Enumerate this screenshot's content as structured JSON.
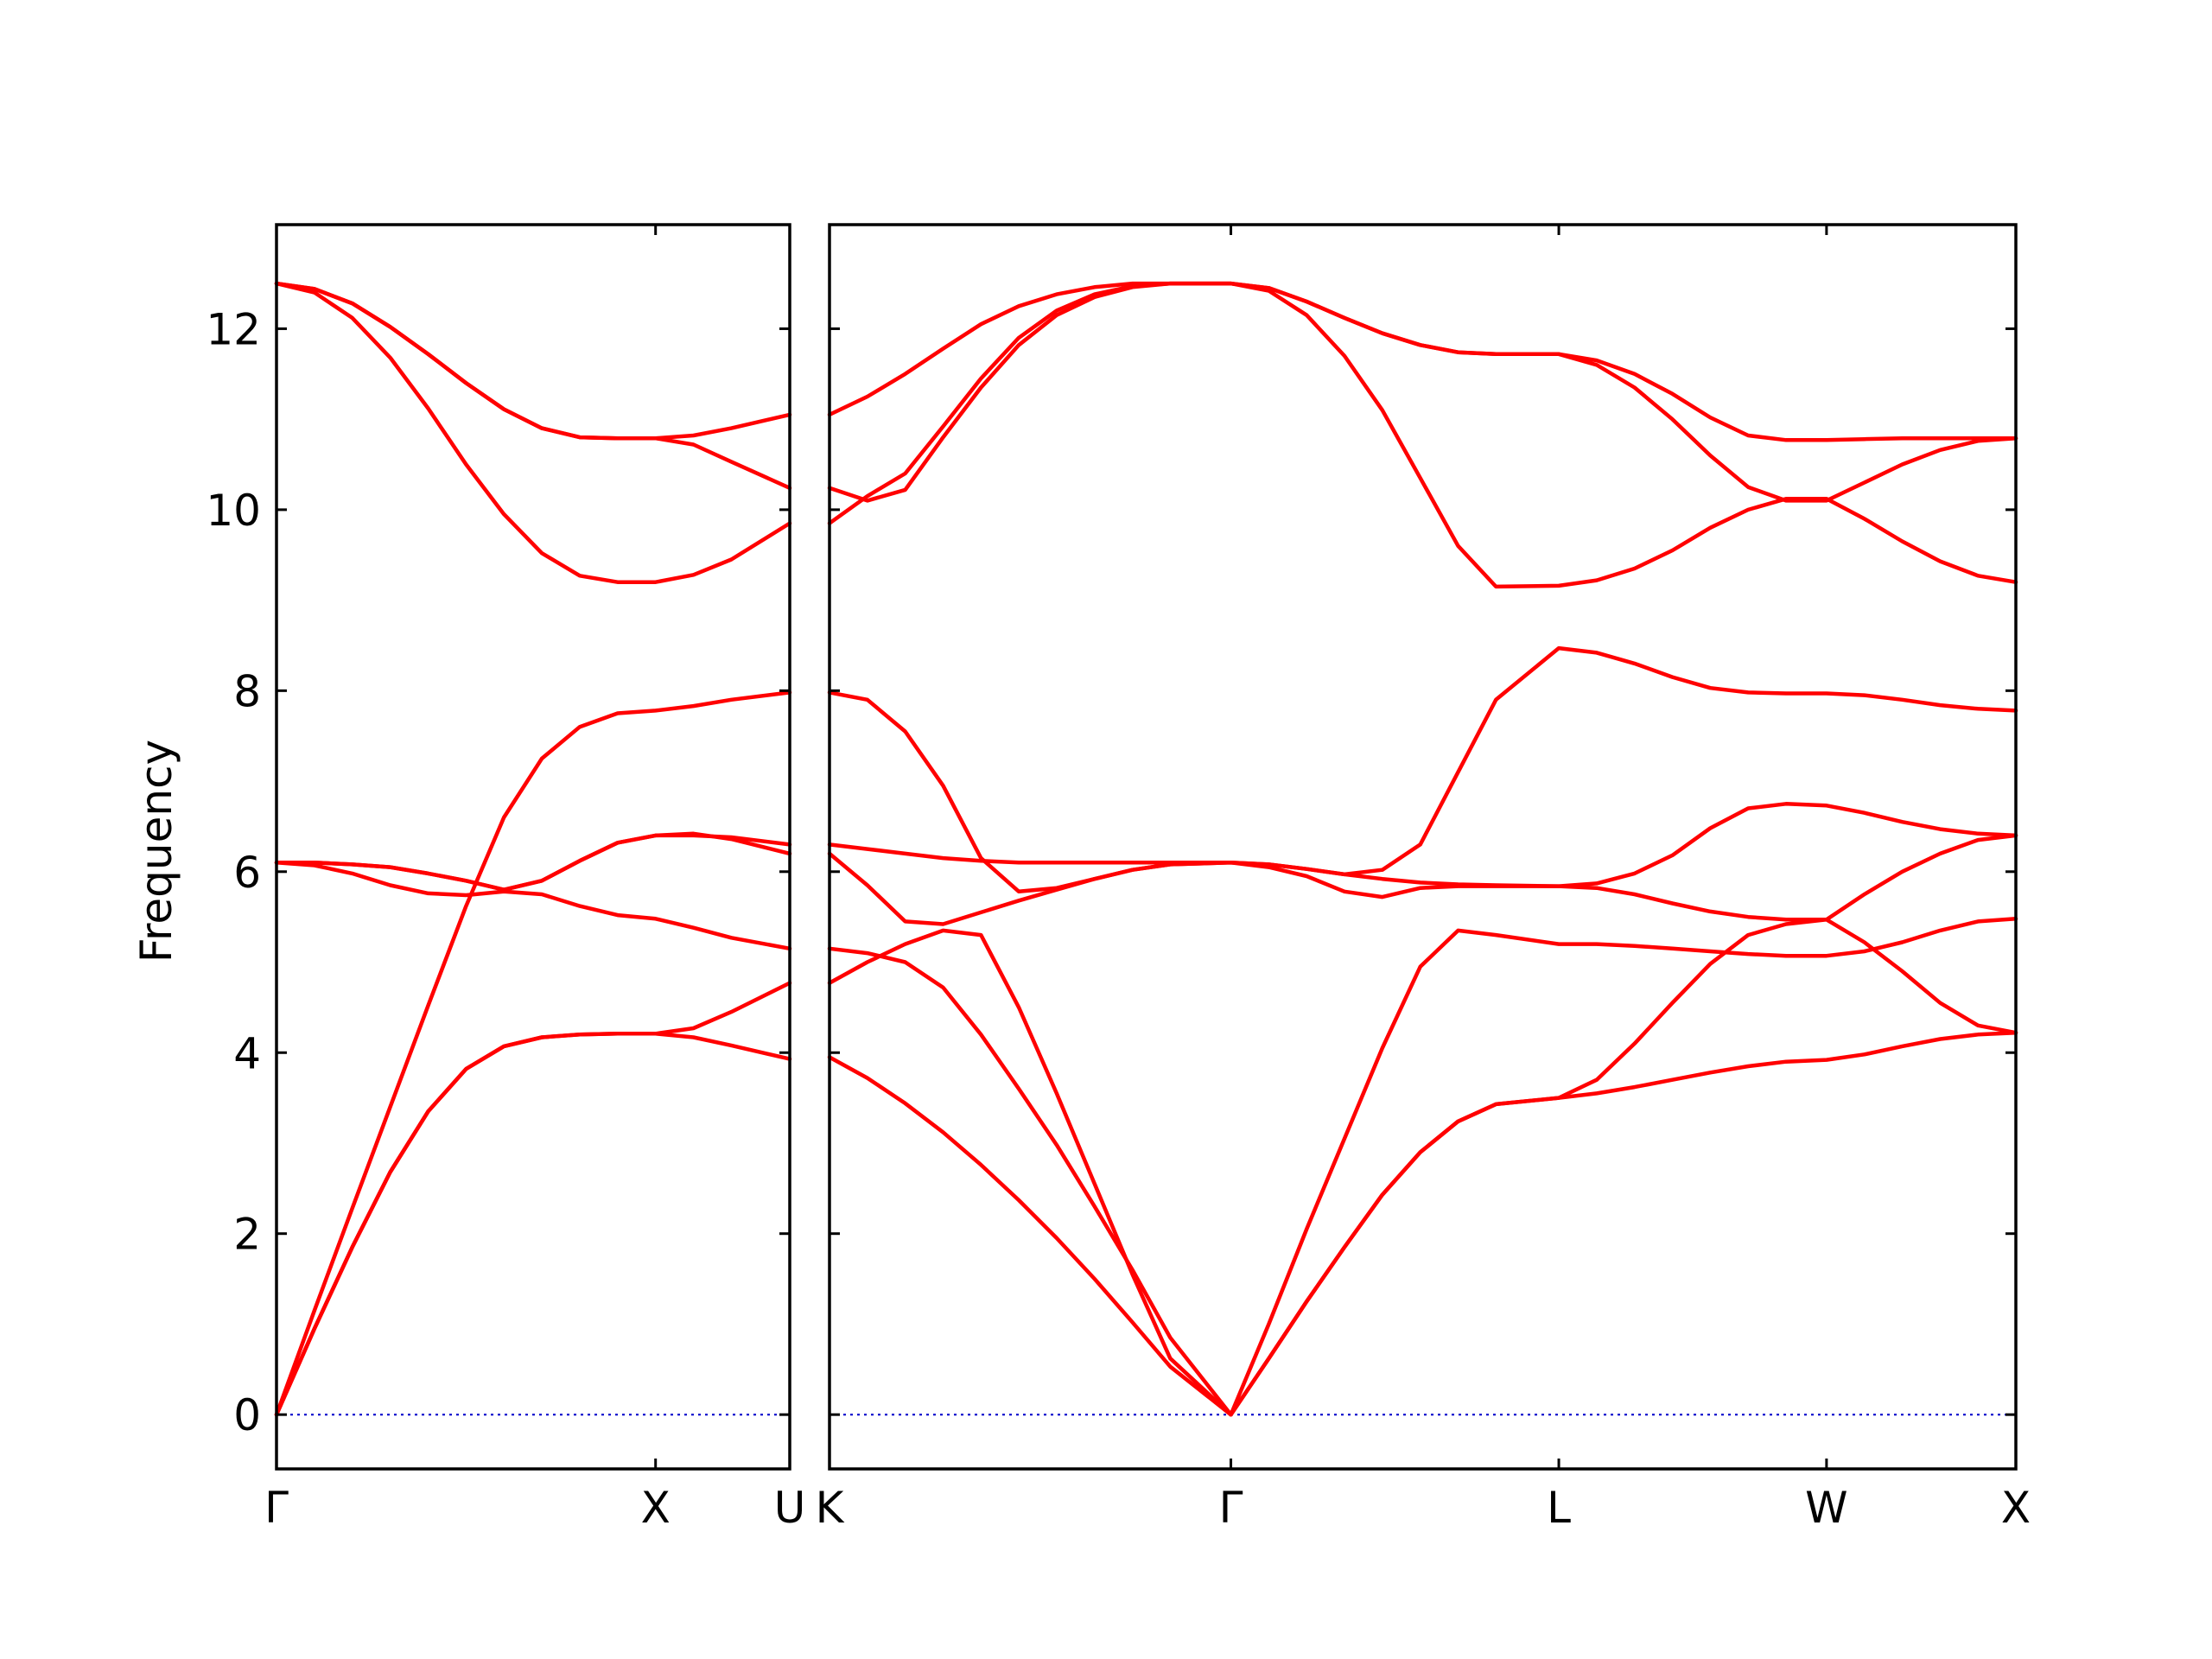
{
  "chart_data": {
    "type": "line",
    "title": "",
    "ylabel": "Frequency",
    "ylim": [
      -0.6,
      13.15
    ],
    "grid": false,
    "colors": {
      "bands": "#ff0000",
      "zero_line": "#0000cc",
      "axes": "#000000"
    },
    "y_ticks": [
      "0",
      "2",
      "4",
      "6",
      "8",
      "10",
      "12"
    ],
    "y_tick_values": [
      0,
      2,
      4,
      6,
      8,
      10,
      12
    ],
    "panels": [
      {
        "path_labels": [
          "Γ",
          "X",
          "U"
        ],
        "x_segments": [
          "Γ-X",
          "X-U"
        ],
        "segment_lengths": [
          1.0,
          0.354
        ],
        "bands": [
          {
            "x": [
              0.0,
              0.1,
              0.2,
              0.3,
              0.4,
              0.5,
              0.6,
              0.7,
              0.8,
              0.9,
              1.0,
              1.1,
              1.2,
              1.354
            ],
            "y": [
              0.0,
              0.95,
              1.85,
              2.68,
              3.35,
              3.82,
              4.07,
              4.17,
              4.2,
              4.21,
              4.21,
              4.17,
              4.08,
              3.93
            ]
          },
          {
            "x": [
              0.0,
              0.1,
              0.2,
              0.3,
              0.4,
              0.5,
              0.6,
              0.7,
              0.8,
              0.9,
              1.0,
              1.1,
              1.2,
              1.354
            ],
            "y": [
              0.0,
              1.15,
              2.28,
              3.4,
              4.52,
              5.62,
              6.6,
              7.25,
              7.6,
              7.75,
              7.78,
              7.83,
              7.9,
              7.98
            ]
          },
          {
            "x": [
              0.0,
              0.1,
              0.2,
              0.3,
              0.4,
              0.5,
              0.6,
              0.7,
              0.8,
              0.9,
              1.0,
              1.1,
              1.2,
              1.354
            ],
            "y": [
              6.1,
              6.07,
              5.98,
              5.85,
              5.76,
              5.74,
              5.78,
              5.75,
              5.62,
              5.52,
              5.48,
              5.38,
              5.27,
              5.15
            ]
          },
          {
            "x": [
              0.0,
              0.1,
              0.2,
              0.3,
              0.4,
              0.5,
              0.6,
              0.7,
              0.8,
              0.9,
              1.0,
              1.1,
              1.2,
              1.354
            ],
            "y": [
              6.1,
              6.1,
              6.08,
              6.05,
              5.98,
              5.9,
              5.8,
              5.9,
              6.12,
              6.32,
              6.4,
              6.42,
              6.36,
              6.2
            ]
          },
          {
            "x": [
              0.0,
              0.1,
              0.2,
              0.3,
              0.4,
              0.5,
              0.6,
              0.7,
              0.8,
              0.9,
              1.0,
              1.1,
              1.2,
              1.354
            ],
            "y": [
              6.1,
              6.1,
              6.08,
              6.05,
              5.98,
              5.9,
              5.8,
              5.9,
              6.12,
              6.32,
              6.4,
              6.4,
              6.38,
              6.3
            ]
          },
          {
            "x": [
              0.0,
              0.1,
              0.2,
              0.3,
              0.4,
              0.5,
              0.6,
              0.7,
              0.8,
              0.9,
              1.0,
              1.1,
              1.2,
              1.354
            ],
            "y": [
              0.0,
              0.95,
              1.85,
              2.68,
              3.35,
              3.82,
              4.07,
              4.17,
              4.2,
              4.21,
              4.21,
              4.27,
              4.45,
              4.77
            ]
          },
          {
            "x": [
              0.0,
              0.1,
              0.2,
              0.3,
              0.4,
              0.5,
              0.6,
              0.7,
              0.8,
              0.9,
              1.0,
              1.1,
              1.2,
              1.354
            ],
            "y": [
              12.5,
              12.4,
              12.12,
              11.68,
              11.12,
              10.5,
              9.95,
              9.52,
              9.27,
              9.2,
              9.2,
              9.28,
              9.45,
              9.85
            ]
          },
          {
            "x": [
              0.0,
              0.1,
              0.2,
              0.3,
              0.4,
              0.5,
              0.6,
              0.7,
              0.8,
              0.9,
              1.0,
              1.1,
              1.2,
              1.354
            ],
            "y": [
              12.5,
              12.44,
              12.28,
              12.02,
              11.72,
              11.4,
              11.11,
              10.9,
              10.8,
              10.79,
              10.79,
              10.72,
              10.53,
              10.24
            ]
          },
          {
            "x": [
              0.0,
              0.1,
              0.2,
              0.3,
              0.4,
              0.5,
              0.6,
              0.7,
              0.8,
              0.9,
              1.0,
              1.1,
              1.2,
              1.354
            ],
            "y": [
              12.5,
              12.44,
              12.28,
              12.02,
              11.72,
              11.4,
              11.11,
              10.9,
              10.8,
              10.79,
              10.79,
              10.82,
              10.9,
              11.05
            ]
          }
        ]
      },
      {
        "path_labels": [
          "K",
          "Γ",
          "L",
          "W",
          "X"
        ],
        "x_segments": [
          "K-Γ",
          "Γ-L",
          "L-W",
          "W-X"
        ],
        "segment_lengths": [
          1.06,
          0.866,
          0.707,
          0.5
        ],
        "bands": [
          {
            "x": [
              0.0,
              0.1,
              0.2,
              0.3,
              0.4,
              0.5,
              0.6,
              0.7,
              0.8,
              0.9,
              1.06,
              1.16,
              1.26,
              1.36,
              1.46,
              1.56,
              1.66,
              1.76,
              1.926,
              2.026,
              2.126,
              2.226,
              2.326,
              2.426,
              2.526,
              2.633,
              2.733,
              2.833,
              2.933,
              3.033,
              3.133
            ],
            "y": [
              3.95,
              3.72,
              3.44,
              3.12,
              2.76,
              2.37,
              1.95,
              1.5,
              1.02,
              0.53,
              0.0,
              0.62,
              1.25,
              1.85,
              2.43,
              2.9,
              3.24,
              3.43,
              3.5,
              3.55,
              3.62,
              3.7,
              3.78,
              3.85,
              3.9,
              3.92,
              3.98,
              4.07,
              4.15,
              4.2,
              4.22
            ]
          },
          {
            "x": [
              0.0,
              0.1,
              0.2,
              0.3,
              0.4,
              0.5,
              0.6,
              0.7,
              0.8,
              0.9,
              1.06,
              1.16,
              1.26,
              1.36,
              1.46,
              1.56,
              1.66,
              1.76,
              1.926,
              2.026,
              2.126,
              2.226,
              2.326,
              2.426,
              2.526,
              2.633,
              2.733,
              2.833,
              2.933,
              3.033,
              3.133
            ],
            "y": [
              5.15,
              5.1,
              5.0,
              4.72,
              4.2,
              3.6,
              2.98,
              2.3,
              1.6,
              0.85,
              0.0,
              0.62,
              1.25,
              1.85,
              2.43,
              2.9,
              3.24,
              3.43,
              3.5,
              3.7,
              4.1,
              4.55,
              4.98,
              5.3,
              5.42,
              5.47,
              5.22,
              4.9,
              4.55,
              4.3,
              4.22
            ]
          },
          {
            "x": [
              0.0,
              0.1,
              0.2,
              0.3,
              0.4,
              0.5,
              0.6,
              0.7,
              0.8,
              0.9,
              1.06,
              1.16,
              1.26,
              1.36,
              1.46,
              1.56,
              1.66,
              1.76,
              1.926,
              2.026,
              2.126,
              2.226,
              2.326,
              2.426,
              2.526,
              2.633,
              2.733,
              2.833,
              2.933,
              3.033,
              3.133
            ],
            "y": [
              4.77,
              5.0,
              5.2,
              5.35,
              5.3,
              4.5,
              3.55,
              2.55,
              1.55,
              0.62,
              0.0,
              1.0,
              2.05,
              3.05,
              4.05,
              4.95,
              5.35,
              5.3,
              5.2,
              5.2,
              5.18,
              5.15,
              5.12,
              5.09,
              5.07,
              5.07,
              5.12,
              5.22,
              5.35,
              5.45,
              5.48
            ]
          },
          {
            "x": [
              0.0,
              0.1,
              0.2,
              0.3,
              0.4,
              0.5,
              0.6,
              0.7,
              0.8,
              0.9,
              1.06,
              1.16,
              1.26,
              1.36,
              1.46,
              1.56,
              1.66,
              1.76,
              1.926,
              2.026,
              2.126,
              2.226,
              2.326,
              2.426,
              2.526,
              2.633,
              2.733,
              2.833,
              2.933,
              3.033,
              3.133
            ],
            "y": [
              6.2,
              5.85,
              5.45,
              5.42,
              5.55,
              5.68,
              5.8,
              5.92,
              6.02,
              6.08,
              6.1,
              6.05,
              5.95,
              5.78,
              5.72,
              5.82,
              5.84,
              5.84,
              5.84,
              5.82,
              5.75,
              5.65,
              5.56,
              5.5,
              5.47,
              5.47,
              5.75,
              6.0,
              6.2,
              6.35,
              6.4
            ]
          },
          {
            "x": [
              0.0,
              0.1,
              0.2,
              0.3,
              0.4,
              0.5,
              0.6,
              0.7,
              0.8,
              0.9,
              1.06,
              1.16,
              1.26,
              1.36,
              1.46,
              1.56,
              1.66,
              1.76,
              1.926,
              2.026,
              2.126,
              2.226,
              2.326,
              2.426,
              2.526,
              2.633,
              2.733,
              2.833,
              2.933,
              3.033,
              3.133
            ],
            "y": [
              6.3,
              6.25,
              6.2,
              6.15,
              6.12,
              6.1,
              6.1,
              6.1,
              6.1,
              6.1,
              6.1,
              6.08,
              6.03,
              5.97,
              5.92,
              5.88,
              5.86,
              5.85,
              5.84,
              5.87,
              5.98,
              6.18,
              6.48,
              6.7,
              6.75,
              6.73,
              6.65,
              6.55,
              6.47,
              6.42,
              6.4
            ]
          },
          {
            "x": [
              0.0,
              0.1,
              0.2,
              0.3,
              0.4,
              0.5,
              0.6,
              0.7,
              0.8,
              0.9,
              1.06,
              1.16,
              1.26,
              1.36,
              1.46,
              1.56,
              1.66,
              1.76,
              1.926,
              2.026,
              2.126,
              2.226,
              2.326,
              2.426,
              2.526,
              2.633,
              2.733,
              2.833,
              2.933,
              3.033,
              3.133
            ],
            "y": [
              7.98,
              7.9,
              7.55,
              6.95,
              6.15,
              5.78,
              5.82,
              5.92,
              6.02,
              6.08,
              6.1,
              6.08,
              6.03,
              5.97,
              6.02,
              6.3,
              7.1,
              7.9,
              8.47,
              8.42,
              8.3,
              8.15,
              8.03,
              7.98,
              7.97,
              7.97,
              7.95,
              7.9,
              7.84,
              7.8,
              7.78
            ]
          },
          {
            "x": [
              0.0,
              0.1,
              0.2,
              0.3,
              0.4,
              0.5,
              0.6,
              0.7,
              0.8,
              0.9,
              1.06,
              1.16,
              1.26,
              1.36,
              1.46,
              1.56,
              1.66,
              1.76,
              1.926,
              2.026,
              2.126,
              2.226,
              2.326,
              2.426,
              2.526,
              2.633,
              2.733,
              2.833,
              2.933,
              3.033,
              3.133
            ],
            "y": [
              9.85,
              10.15,
              10.4,
              10.92,
              11.45,
              11.9,
              12.2,
              12.38,
              12.47,
              12.5,
              12.5,
              12.42,
              12.15,
              11.7,
              11.1,
              10.35,
              9.6,
              9.15,
              9.16,
              9.22,
              9.35,
              9.55,
              9.8,
              10.0,
              10.12,
              10.12,
              9.9,
              9.65,
              9.43,
              9.27,
              9.2
            ]
          },
          {
            "x": [
              0.0,
              0.1,
              0.2,
              0.3,
              0.4,
              0.5,
              0.6,
              0.7,
              0.8,
              0.9,
              1.06,
              1.16,
              1.26,
              1.36,
              1.46,
              1.56,
              1.66,
              1.76,
              1.926,
              2.026,
              2.126,
              2.226,
              2.326,
              2.426,
              2.526,
              2.633,
              2.733,
              2.833,
              2.933,
              3.033,
              3.133
            ],
            "y": [
              10.24,
              10.1,
              10.22,
              10.8,
              11.35,
              11.82,
              12.15,
              12.35,
              12.46,
              12.5,
              12.5,
              12.45,
              12.3,
              12.12,
              11.95,
              11.82,
              11.74,
              11.72,
              11.72,
              11.6,
              11.35,
              11.0,
              10.6,
              10.25,
              10.1,
              10.1,
              10.3,
              10.5,
              10.66,
              10.76,
              10.79
            ]
          },
          {
            "x": [
              0.0,
              0.1,
              0.2,
              0.3,
              0.4,
              0.5,
              0.6,
              0.7,
              0.8,
              0.9,
              1.06,
              1.16,
              1.26,
              1.36,
              1.46,
              1.56,
              1.66,
              1.76,
              1.926,
              2.026,
              2.126,
              2.226,
              2.326,
              2.426,
              2.526,
              2.633,
              2.733,
              2.833,
              2.933,
              3.033,
              3.133
            ],
            "y": [
              11.05,
              11.25,
              11.5,
              11.78,
              12.05,
              12.25,
              12.38,
              12.46,
              12.5,
              12.5,
              12.5,
              12.45,
              12.3,
              12.12,
              11.95,
              11.82,
              11.74,
              11.72,
              11.72,
              11.65,
              11.5,
              11.28,
              11.02,
              10.82,
              10.77,
              10.77,
              10.78,
              10.79,
              10.79,
              10.79,
              10.79
            ]
          }
        ]
      }
    ]
  }
}
